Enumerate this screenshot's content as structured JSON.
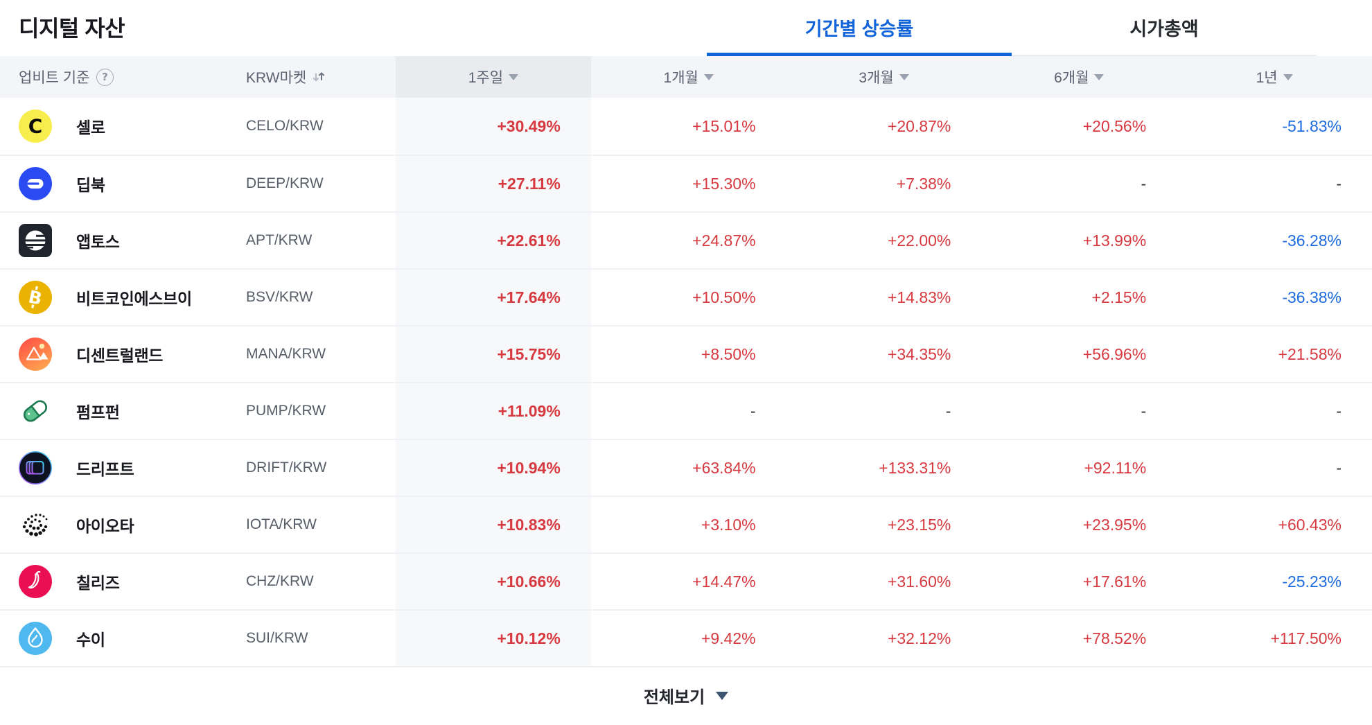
{
  "page": {
    "title": "디지털 자산"
  },
  "tabs": [
    {
      "label": "기간별 상승률",
      "active": true
    },
    {
      "label": "시가총액",
      "active": false
    }
  ],
  "table": {
    "basis_label": "업비트 기준",
    "market_header": "KRW마켓",
    "period_headers": [
      "1주일",
      "1개월",
      "3개월",
      "6개월",
      "1년"
    ],
    "rows": [
      {
        "name": "셀로",
        "pair": "CELO/KRW",
        "icon": "celo",
        "values": [
          "+30.49%",
          "+15.01%",
          "+20.87%",
          "+20.56%",
          "-51.83%"
        ]
      },
      {
        "name": "딥북",
        "pair": "DEEP/KRW",
        "icon": "deep",
        "values": [
          "+27.11%",
          "+15.30%",
          "+7.38%",
          "-",
          "-"
        ]
      },
      {
        "name": "앱토스",
        "pair": "APT/KRW",
        "icon": "apt",
        "values": [
          "+22.61%",
          "+24.87%",
          "+22.00%",
          "+13.99%",
          "-36.28%"
        ]
      },
      {
        "name": "비트코인에스브이",
        "pair": "BSV/KRW",
        "icon": "bsv",
        "values": [
          "+17.64%",
          "+10.50%",
          "+14.83%",
          "+2.15%",
          "-36.38%"
        ]
      },
      {
        "name": "디센트럴랜드",
        "pair": "MANA/KRW",
        "icon": "mana",
        "values": [
          "+15.75%",
          "+8.50%",
          "+34.35%",
          "+56.96%",
          "+21.58%"
        ]
      },
      {
        "name": "펌프펀",
        "pair": "PUMP/KRW",
        "icon": "pump",
        "values": [
          "+11.09%",
          "-",
          "-",
          "-",
          "-"
        ]
      },
      {
        "name": "드리프트",
        "pair": "DRIFT/KRW",
        "icon": "drift",
        "values": [
          "+10.94%",
          "+63.84%",
          "+133.31%",
          "+92.11%",
          "-"
        ]
      },
      {
        "name": "아이오타",
        "pair": "IOTA/KRW",
        "icon": "iota",
        "values": [
          "+10.83%",
          "+3.10%",
          "+23.15%",
          "+23.95%",
          "+60.43%"
        ]
      },
      {
        "name": "칠리즈",
        "pair": "CHZ/KRW",
        "icon": "chz",
        "values": [
          "+10.66%",
          "+14.47%",
          "+31.60%",
          "+17.61%",
          "-25.23%"
        ]
      },
      {
        "name": "수이",
        "pair": "SUI/KRW",
        "icon": "sui",
        "values": [
          "+10.12%",
          "+9.42%",
          "+32.12%",
          "+78.52%",
          "+117.50%"
        ]
      }
    ]
  },
  "footer": {
    "view_all_label": "전체보기"
  },
  "colors": {
    "positive": "#d6393f",
    "negative": "#1c6be0",
    "tab_active": "#1063d8",
    "column_highlight": "#f7f8fa"
  }
}
